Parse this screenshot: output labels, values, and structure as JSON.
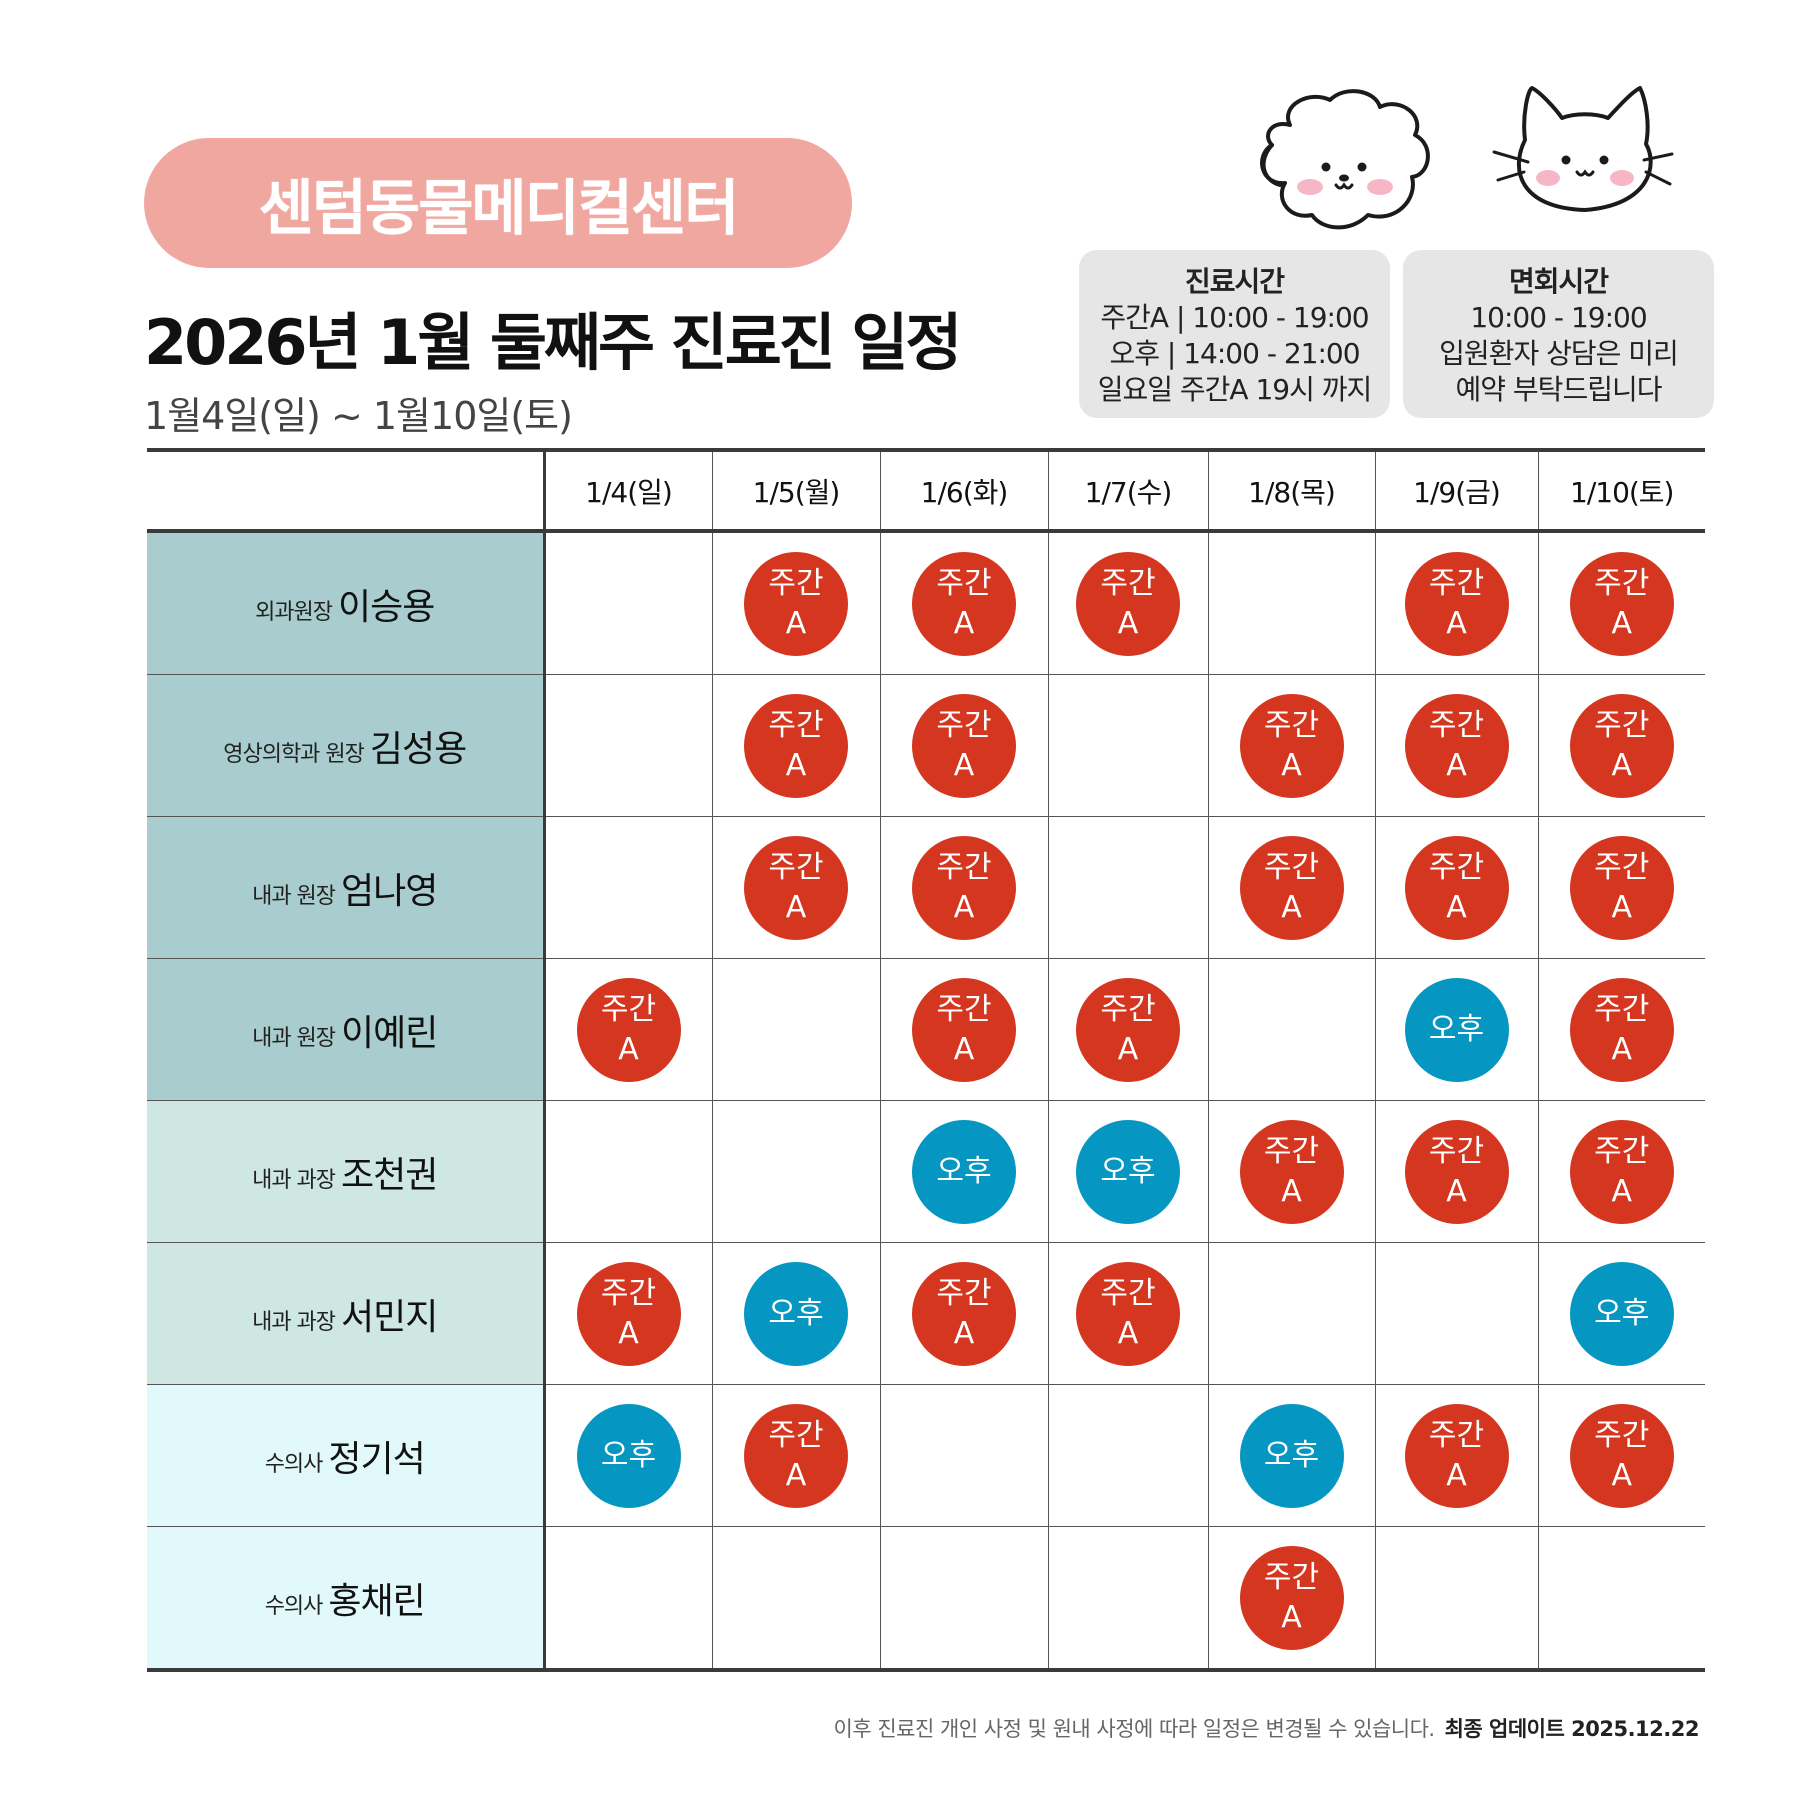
{
  "brand": "센텀동물메디컬센터",
  "title": "2026년 1월 둘째주 진료진 일정",
  "date_range": "1월4일(일) ~ 1월10일(토)",
  "hours_box": {
    "title": "진료시간",
    "lines": [
      "주간A | 10:00 - 19:00",
      "오후 | 14:00 - 21:00",
      "일요일 주간A 19시 까지"
    ]
  },
  "visit_box": {
    "title": "면회시간",
    "lines": [
      "10:00 - 19:00",
      "입원환자 상담은 미리",
      "예약 부탁드립니다"
    ]
  },
  "shift_labels": {
    "day_line1": "주간",
    "day_line2": "A",
    "pm": "오후"
  },
  "colors": {
    "day_badge": "#d4361f",
    "pm_badge": "#0596c2",
    "brand_pill": "#f0a7a0"
  },
  "days": [
    "1/4(일)",
    "1/5(월)",
    "1/6(화)",
    "1/7(수)",
    "1/8(목)",
    "1/9(금)",
    "1/10(토)"
  ],
  "staff": [
    {
      "role": "외과원장",
      "name": "이승용",
      "bg": "#a9cdce",
      "shifts": [
        "",
        "A",
        "A",
        "A",
        "",
        "A",
        "A"
      ]
    },
    {
      "role": "영상의학과 원장",
      "name": "김성용",
      "bg": "#a9cdce",
      "shifts": [
        "",
        "A",
        "A",
        "",
        "A",
        "A",
        "A"
      ]
    },
    {
      "role": "내과 원장",
      "name": "엄나영",
      "bg": "#a9cdce",
      "shifts": [
        "",
        "A",
        "A",
        "",
        "A",
        "A",
        "A"
      ]
    },
    {
      "role": "내과 원장",
      "name": "이예린",
      "bg": "#a9cdce",
      "shifts": [
        "A",
        "",
        "A",
        "A",
        "",
        "P",
        "A"
      ]
    },
    {
      "role": "내과 과장",
      "name": "조천권",
      "bg": "#cfe7e2",
      "shifts": [
        "",
        "",
        "P",
        "P",
        "A",
        "A",
        "A"
      ]
    },
    {
      "role": "내과 과장",
      "name": "서민지",
      "bg": "#cfe7e2",
      "shifts": [
        "A",
        "P",
        "A",
        "A",
        "",
        "",
        "P"
      ]
    },
    {
      "role": "수의사",
      "name": "정기석",
      "bg": "#e2f9fb",
      "shifts": [
        "P",
        "A",
        "",
        "",
        "P",
        "A",
        "A"
      ]
    },
    {
      "role": "수의사",
      "name": "홍채린",
      "bg": "#e2f9fb",
      "shifts": [
        "",
        "",
        "",
        "",
        "A",
        "",
        ""
      ]
    }
  ],
  "footer": {
    "note": "이후 진료진 개인 사정 및 원내 사정에 따라 일정은 변경될 수 있습니다.",
    "update": "최종 업데이트  2025.12.22"
  }
}
